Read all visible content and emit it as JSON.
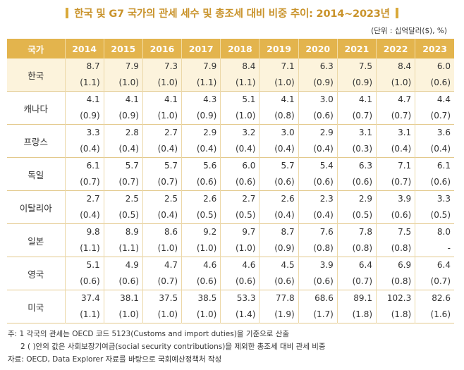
{
  "title": "한국 및 G7 국가의 관세 세수 및 총조세 대비 비중 추이: 2014~2023년",
  "unit": "(단위 : 십억달러($), %)",
  "table": {
    "header_country": "국가",
    "years": [
      "2014",
      "2015",
      "2016",
      "2017",
      "2018",
      "2019",
      "2020",
      "2021",
      "2022",
      "2023"
    ],
    "rows": [
      {
        "country": "한국",
        "values": [
          "8.7",
          "7.9",
          "7.3",
          "7.9",
          "8.4",
          "7.1",
          "6.3",
          "7.5",
          "8.4",
          "6.0"
        ],
        "shares": [
          "(1.1)",
          "(1.0)",
          "(1.0)",
          "(1.1)",
          "(1.1)",
          "(1.0)",
          "(0.9)",
          "(0.9)",
          "(1.0)",
          "(0.6)"
        ]
      },
      {
        "country": "캐나다",
        "values": [
          "4.1",
          "4.1",
          "4.1",
          "4.3",
          "5.1",
          "4.1",
          "3.0",
          "4.1",
          "4.7",
          "4.4"
        ],
        "shares": [
          "(0.9)",
          "(0.9)",
          "(1.0)",
          "(0.9)",
          "(1.0)",
          "(0.8)",
          "(0.6)",
          "(0.7)",
          "(0.7)",
          "(0.7)"
        ]
      },
      {
        "country": "프랑스",
        "values": [
          "3.3",
          "2.8",
          "2.7",
          "2.9",
          "3.2",
          "3.0",
          "2.9",
          "3.1",
          "3.1",
          "3.6"
        ],
        "shares": [
          "(0.4)",
          "(0.4)",
          "(0.4)",
          "(0.4)",
          "(0.4)",
          "(0.4)",
          "(0.4)",
          "(0.3)",
          "(0.4)",
          "(0.4)"
        ]
      },
      {
        "country": "독일",
        "values": [
          "6.1",
          "5.7",
          "5.7",
          "5.6",
          "6.0",
          "5.7",
          "5.4",
          "6.3",
          "7.1",
          "6.1"
        ],
        "shares": [
          "(0.7)",
          "(0.7)",
          "(0.7)",
          "(0.6)",
          "(0.6)",
          "(0.6)",
          "(0.6)",
          "(0.6)",
          "(0.7)",
          "(0.6)"
        ]
      },
      {
        "country": "이탈리아",
        "values": [
          "2.7",
          "2.5",
          "2.5",
          "2.6",
          "2.7",
          "2.6",
          "2.3",
          "2.9",
          "3.9",
          "3.3"
        ],
        "shares": [
          "(0.4)",
          "(0.5)",
          "(0.4)",
          "(0.5)",
          "(0.5)",
          "(0.4)",
          "(0.4)",
          "(0.5)",
          "(0.6)",
          "(0.5)"
        ]
      },
      {
        "country": "일본",
        "values": [
          "9.8",
          "8.9",
          "8.6",
          "9.2",
          "9.7",
          "8.7",
          "7.6",
          "7.8",
          "7.5",
          "8.0"
        ],
        "shares": [
          "(1.1)",
          "(1.1)",
          "(1.0)",
          "(1.0)",
          "(1.0)",
          "(0.9)",
          "(0.8)",
          "(0.8)",
          "(0.8)",
          "-"
        ]
      },
      {
        "country": "영국",
        "values": [
          "5.1",
          "4.9",
          "4.7",
          "4.6",
          "4.6",
          "4.5",
          "3.9",
          "6.4",
          "6.9",
          "6.4"
        ],
        "shares": [
          "(0.6)",
          "(0.6)",
          "(0.7)",
          "(0.6)",
          "(0.6)",
          "(0.6)",
          "(0.6)",
          "(0.7)",
          "(0.8)",
          "(0.7)"
        ]
      },
      {
        "country": "미국",
        "values": [
          "37.4",
          "38.1",
          "37.5",
          "38.5",
          "53.3",
          "77.8",
          "68.6",
          "89.1",
          "102.3",
          "82.6"
        ],
        "shares": [
          "(1.1)",
          "(1.0)",
          "(1.0)",
          "(1.0)",
          "(1.4)",
          "(1.9)",
          "(1.7)",
          "(1.8)",
          "(1.8)",
          "(1.6)"
        ]
      }
    ]
  },
  "notes": {
    "note1": "주: 1  각국의 관세는 OECD 코드 5123(Customs and import duties)을 기준으로 산출",
    "note2": "2  ( )안의 값은 사회보장기여금(social security contributions)을 제외한 총조세 대비 관세 비중",
    "source": "자료: OECD, Data Explorer 자료를 바탕으로 국회예산정책처 작성"
  },
  "colors": {
    "accent": "#e3b44d",
    "title": "#c9932b",
    "highlight_row": "#fcf3dc"
  }
}
